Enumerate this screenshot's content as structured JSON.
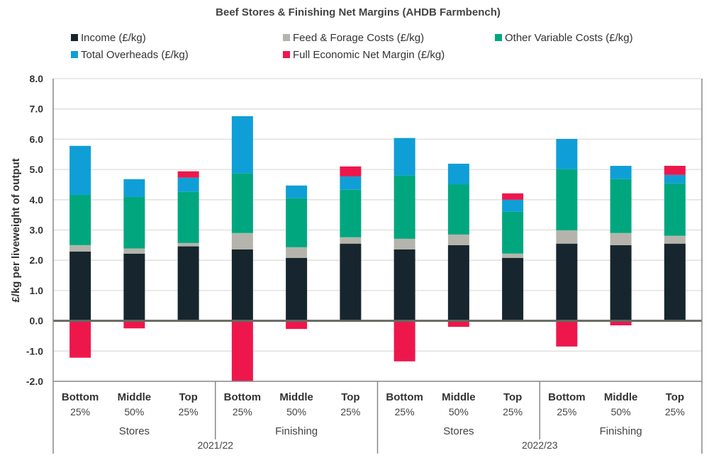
{
  "chart_data": {
    "type": "bar",
    "stacked": true,
    "title": "Beef Stores & Finishing Net Margins (AHDB Farmbench)",
    "ylabel": "£/kg per liveweight of output",
    "xlabel": "",
    "ylim": [
      -2.0,
      8.0
    ],
    "yticks": [
      "-2.0",
      "-1.0",
      "0.0",
      "1.0",
      "2.0",
      "3.0",
      "4.0",
      "5.0",
      "6.0",
      "7.0",
      "8.0"
    ],
    "grid": true,
    "legend_position": "top",
    "categories": [
      {
        "line1": "Bottom",
        "line2": "25%"
      },
      {
        "line1": "Middle",
        "line2": "50%"
      },
      {
        "line1": "Top",
        "line2": "25%"
      },
      {
        "line1": "Bottom",
        "line2": "25%"
      },
      {
        "line1": "Middle",
        "line2": "50%"
      },
      {
        "line1": "Top",
        "line2": "25%"
      },
      {
        "line1": "Bottom",
        "line2": "25%"
      },
      {
        "line1": "Middle",
        "line2": "50%"
      },
      {
        "line1": "Top",
        "line2": "25%"
      },
      {
        "line1": "Bottom",
        "line2": "25%"
      },
      {
        "line1": "Middle",
        "line2": "50%"
      },
      {
        "line1": "Top",
        "line2": "25%"
      }
    ],
    "groups": [
      "Stores",
      "Finishing",
      "Stores",
      "Finishing"
    ],
    "years": [
      "2021/22",
      "2022/23"
    ],
    "series": [
      {
        "name": "Income (£/kg)",
        "color": "#17262e",
        "values": [
          2.29,
          2.22,
          2.46,
          2.36,
          2.08,
          2.55,
          2.36,
          2.5,
          2.08,
          2.55,
          2.5,
          2.55
        ]
      },
      {
        "name": "Feed & Forage Costs (£/kg)",
        "color": "#b4b4ac",
        "values": [
          0.21,
          0.17,
          0.11,
          0.54,
          0.35,
          0.21,
          0.35,
          0.35,
          0.14,
          0.44,
          0.4,
          0.26
        ]
      },
      {
        "name": "Other Variable Costs (£/kg)",
        "color": "#00a77e",
        "values": [
          1.66,
          1.7,
          1.69,
          1.97,
          1.62,
          1.57,
          2.09,
          1.66,
          1.38,
          2.02,
          1.78,
          1.73
        ]
      },
      {
        "name": "Total Overheads (£/kg)",
        "color": "#0f9fd6",
        "values": [
          1.62,
          0.59,
          0.47,
          1.89,
          0.42,
          0.44,
          1.24,
          0.68,
          0.4,
          1.0,
          0.44,
          0.28
        ]
      },
      {
        "name": "Full Economic Net Margin (£/kg)",
        "color": "#ee174c",
        "values": [
          -1.22,
          -0.25,
          0.21,
          -2.0,
          -0.27,
          0.33,
          -1.34,
          -0.2,
          0.21,
          -0.85,
          -0.15,
          0.3
        ]
      }
    ]
  }
}
